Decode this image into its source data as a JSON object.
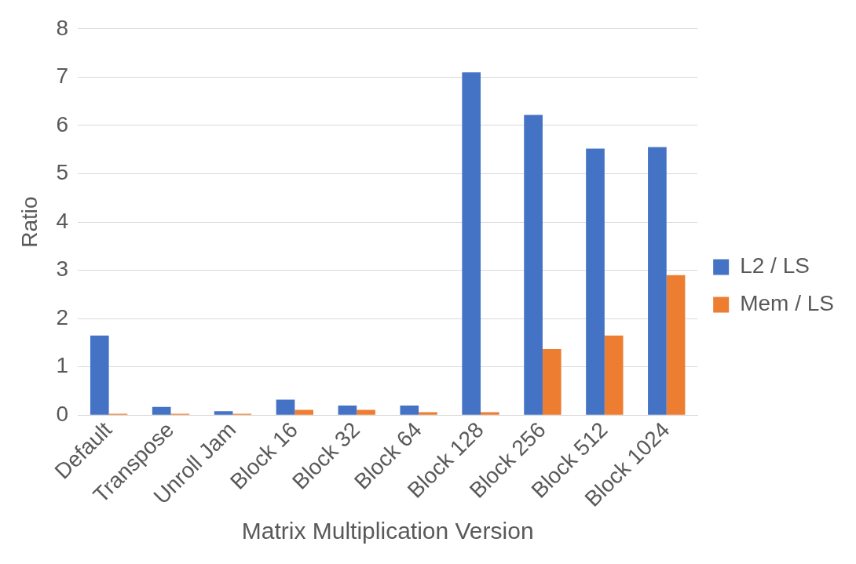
{
  "chart_data": {
    "type": "bar",
    "xlabel": "Matrix Multiplication Version",
    "ylabel": "Ratio",
    "categories": [
      "Default",
      "Transpose",
      "Unroll Jam",
      "Block 16",
      "Block 32",
      "Block 64",
      "Block 128",
      "Block 256",
      "Block 512",
      "Block 1024"
    ],
    "series": [
      {
        "name": "L2 / LS",
        "color": "#4472c4",
        "values": [
          1.65,
          0.17,
          0.08,
          0.32,
          0.2,
          0.2,
          7.1,
          6.22,
          5.52,
          5.55
        ]
      },
      {
        "name": "Mem / LS",
        "color": "#ed7d31",
        "values": [
          0.03,
          0.03,
          0.03,
          0.11,
          0.11,
          0.06,
          0.06,
          1.37,
          1.65,
          2.9
        ]
      }
    ],
    "ylim": [
      0,
      8
    ],
    "yticks": [
      0,
      1,
      2,
      3,
      4,
      5,
      6,
      7,
      8
    ],
    "grid": "y",
    "legend": "right"
  }
}
